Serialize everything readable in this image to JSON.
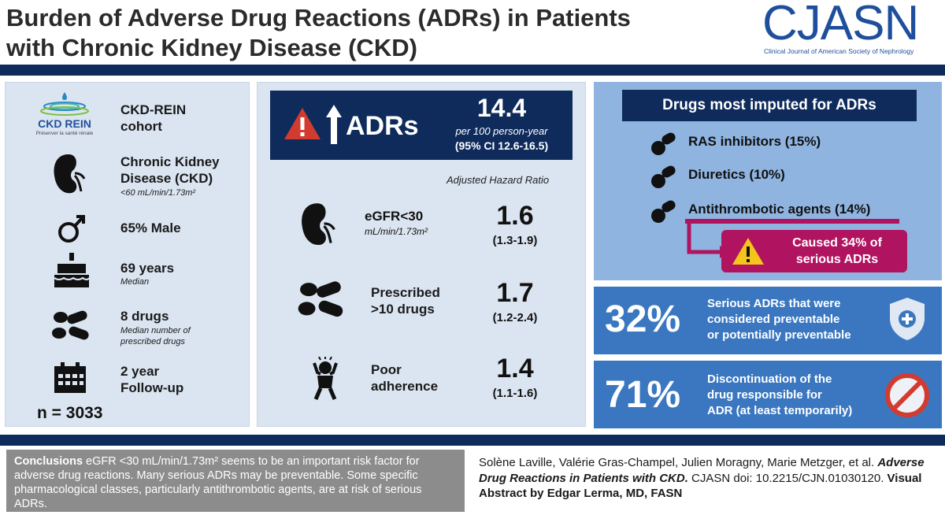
{
  "header": {
    "title_line1": "Burden of Adverse Drug Reactions (ADRs) in Patients",
    "title_line2": "with Chronic Kidney Disease (CKD)",
    "logo_text": "CJASN",
    "logo_subtitle": "Clinical Journal of American Society of Nephrology"
  },
  "left": {
    "cohort_logo": "CKD REIN",
    "cohort_logo_tagline": "Préserver la santé rénale",
    "cohort_line1": "CKD-REIN",
    "cohort_line2": "cohort",
    "ckd_line1": "Chronic Kidney",
    "ckd_line2": "Disease (CKD)",
    "ckd_sub": "<60 mL/min/1.73m²",
    "male": "65% Male",
    "age": "69 years",
    "age_sub": "Median",
    "drugs": "8 drugs",
    "drugs_sub1": "Median number of",
    "drugs_sub2": "prescribed drugs",
    "followup_line1": "2 year",
    "followup_line2": "Follow-up",
    "n": "n = 3033"
  },
  "middle": {
    "adrs_label": "ADRs",
    "rate": "14.4",
    "rate_unit": "per 100 person-year",
    "rate_ci": "(95% CI 12.6-16.5)",
    "ahr_header": "Adjusted Hazard Ratio",
    "rows": [
      {
        "label1": "eGFR<30",
        "label2": "mL/min/1.73m²",
        "value": "1.6",
        "ci": "(1.3-1.9)"
      },
      {
        "label1": "Prescribed",
        "label2": ">10 drugs",
        "value": "1.7",
        "ci": "(1.2-2.4)"
      },
      {
        "label1": "Poor",
        "label2": "adherence",
        "value": "1.4",
        "ci": "(1.1-1.6)"
      }
    ]
  },
  "right": {
    "drugs_header": "Drugs most imputed for ADRs",
    "drug_items": [
      "RAS inhibitors (15%)",
      "Diuretics (10%)",
      "Antithrombotic agents (14%)"
    ],
    "caused_line1": "Caused 34% of",
    "caused_line2": "serious ADRs",
    "stat1_pct": "32%",
    "stat1_l1": "Serious ADRs that were",
    "stat1_l2": "considered preventable",
    "stat1_l3": "or potentially preventable",
    "stat2_pct": "71%",
    "stat2_l1": "Discontinuation of the",
    "stat2_l2": "drug responsible for",
    "stat2_l3": "ADR (at least temporarily)"
  },
  "footer": {
    "conclusions_label": "Conclusions",
    "conclusions_text": " eGFR <30 mL/min/1.73m² seems to be an important risk factor for adverse drug reactions. Many serious ADRs may be preventable. Some specific pharmacological classes, particularly antithrombotic agents, are at risk of serious ADRs.",
    "cite_authors": "Solène Laville, Valérie Gras-Champel, Julien Moragny, Marie Metzger, et al.",
    "cite_title": "Adverse Drug Reactions in Patients with CKD.",
    "cite_doi": " CJASN doi: 10.2215/CJN.01030120.",
    "cite_va": "Visual Abstract by Edgar Lerma, MD, FASN"
  },
  "colors": {
    "navy": "#0e2b5c",
    "panel": "#dbe5f1",
    "accent_blue": "#3a77c0",
    "magenta": "#b0135f",
    "warning_red": "#d23b2f"
  }
}
